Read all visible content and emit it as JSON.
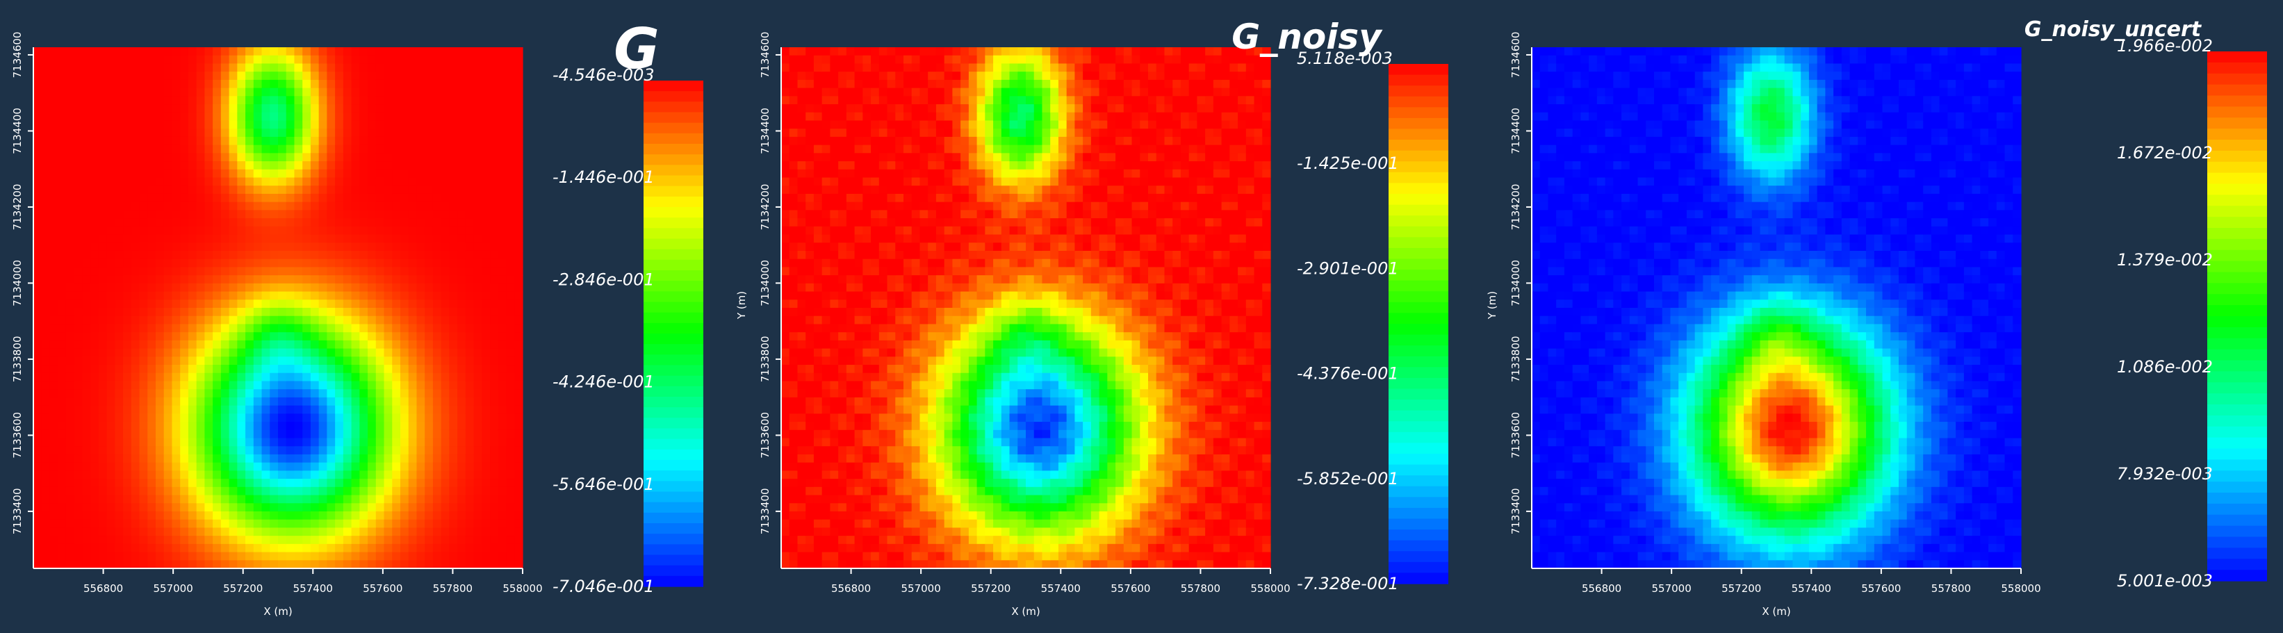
{
  "colormap": [
    "#0000ff",
    "#00ffff",
    "#00ff00",
    "#ffff00",
    "#ff0000"
  ],
  "chart_data": [
    {
      "type": "heatmap",
      "title": "G",
      "xlabel": "X (m)",
      "ylabel": "",
      "xlim": [
        556600,
        558000
      ],
      "ylim": [
        7133250,
        7134620
      ],
      "x_ticks": [
        556800,
        557000,
        557200,
        557400,
        557600,
        557800,
        558000
      ],
      "y_ticks": [
        7133400,
        7133600,
        7133800,
        7134000,
        7134200,
        7134400,
        7134600
      ],
      "x_tick_labels": [
        "556800",
        "557000",
        "557200",
        "557400",
        "557600",
        "557800",
        "558000"
      ],
      "y_tick_labels": [
        "7133400",
        "7133600",
        "7133800",
        "7134000",
        "7134200",
        "7134400",
        "7134600"
      ],
      "colorbar_labels": [
        "-4.546e-003",
        "-1.446e-001",
        "-2.846e-001",
        "-4.246e-001",
        "-5.646e-001",
        "-7.046e-001"
      ],
      "range": [
        -0.7046,
        -0.004546
      ],
      "anomalies": [
        {
          "x": 557285,
          "y": 7134440,
          "sx": 85,
          "sy": 120,
          "amp": -0.44
        },
        {
          "x": 557340,
          "y": 7133620,
          "sx": 190,
          "sy": 190,
          "amp": -0.7
        },
        {
          "x": 557300,
          "y": 7133860,
          "sx": 70,
          "sy": 70,
          "amp": -0.1
        }
      ],
      "noise": 0
    },
    {
      "type": "heatmap",
      "title": "G_noisy",
      "xlabel": "X (m)",
      "ylabel": "Y (m)",
      "xlim": [
        556600,
        558000
      ],
      "ylim": [
        7133250,
        7134620
      ],
      "x_ticks": [
        556800,
        557000,
        557200,
        557400,
        557600,
        557800,
        558000
      ],
      "y_ticks": [
        7133400,
        7133600,
        7133800,
        7134000,
        7134200,
        7134400,
        7134600
      ],
      "x_tick_labels": [
        "556800",
        "557000",
        "557200",
        "557400",
        "557600",
        "557800",
        "558000"
      ],
      "y_tick_labels": [
        "7133400",
        "7133600",
        "7133800",
        "7134000",
        "7134200",
        "7134400",
        "7134600"
      ],
      "colorbar_labels": [
        "5.118e-003",
        "-1.425e-001",
        "-2.901e-001",
        "-4.376e-001",
        "-5.852e-001",
        "-7.328e-001"
      ],
      "range": [
        -0.7328,
        0.005118
      ],
      "anomalies": [
        {
          "x": 557285,
          "y": 7134440,
          "sx": 85,
          "sy": 120,
          "amp": -0.44
        },
        {
          "x": 557340,
          "y": 7133620,
          "sx": 190,
          "sy": 190,
          "amp": -0.7
        },
        {
          "x": 557300,
          "y": 7133860,
          "sx": 70,
          "sy": 70,
          "amp": -0.1
        }
      ],
      "noise": 0.03
    },
    {
      "type": "heatmap",
      "title": "G_noisy_uncert",
      "xlabel": "X (m)",
      "ylabel": "Y (m)",
      "xlim": [
        556600,
        558000
      ],
      "ylim": [
        7133250,
        7134620
      ],
      "x_ticks": [
        556800,
        557000,
        557200,
        557400,
        557600,
        557800,
        558000
      ],
      "y_ticks": [
        7133400,
        7133600,
        7133800,
        7134000,
        7134200,
        7134400,
        7134600
      ],
      "x_tick_labels": [
        "556800",
        "557000",
        "557200",
        "557400",
        "557600",
        "557800",
        "558000"
      ],
      "y_tick_labels": [
        "7133400",
        "7133600",
        "7133800",
        "7134000",
        "7134200",
        "7134400",
        "7134600"
      ],
      "colorbar_labels": [
        "1.966e-002",
        "1.672e-002",
        "1.379e-002",
        "1.086e-002",
        "7.932e-003",
        "5.001e-003"
      ],
      "range": [
        0.005001,
        0.01966
      ],
      "anomalies": [
        {
          "x": 557285,
          "y": 7134440,
          "sx": 85,
          "sy": 120,
          "amp": 0.0066
        },
        {
          "x": 557340,
          "y": 7133620,
          "sx": 190,
          "sy": 190,
          "amp": 0.0146
        },
        {
          "x": 557300,
          "y": 7133860,
          "sx": 70,
          "sy": 70,
          "amp": 0.0022
        }
      ],
      "noise": 0.0004
    }
  ]
}
